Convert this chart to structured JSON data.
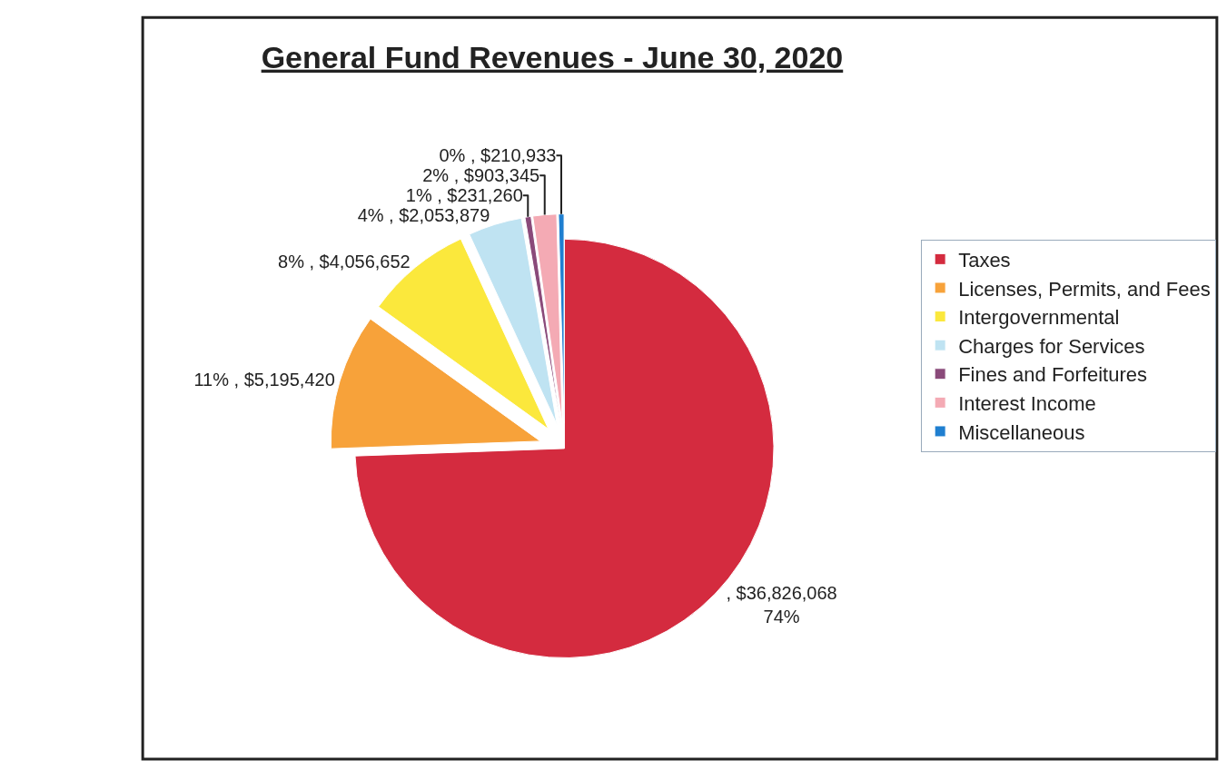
{
  "chart_data": {
    "type": "pie",
    "title": "General Fund Revenues - June 30, 2020",
    "categories": [
      "Taxes",
      "Licenses, Permits, and Fees",
      "Intergovernmental",
      "Charges for Services",
      "Fines and Forfeitures",
      "Interest Income",
      "Miscellaneous"
    ],
    "values": [
      36826068,
      5195420,
      4056652,
      2053879,
      231260,
      903345,
      210933
    ],
    "value_labels": [
      ", $36,826,068\n74%",
      "11% , $5,195,420",
      "8% , $4,056,652",
      "4% , $2,053,879",
      "1% , $231,260",
      "2% , $903,345",
      "0% , $210,933"
    ],
    "colors": [
      "#d42b3f",
      "#f7a23a",
      "#fbe83c",
      "#bfe3f2",
      "#8a4a7a",
      "#f4aab4",
      "#1f7fd0"
    ],
    "legend": "right"
  }
}
